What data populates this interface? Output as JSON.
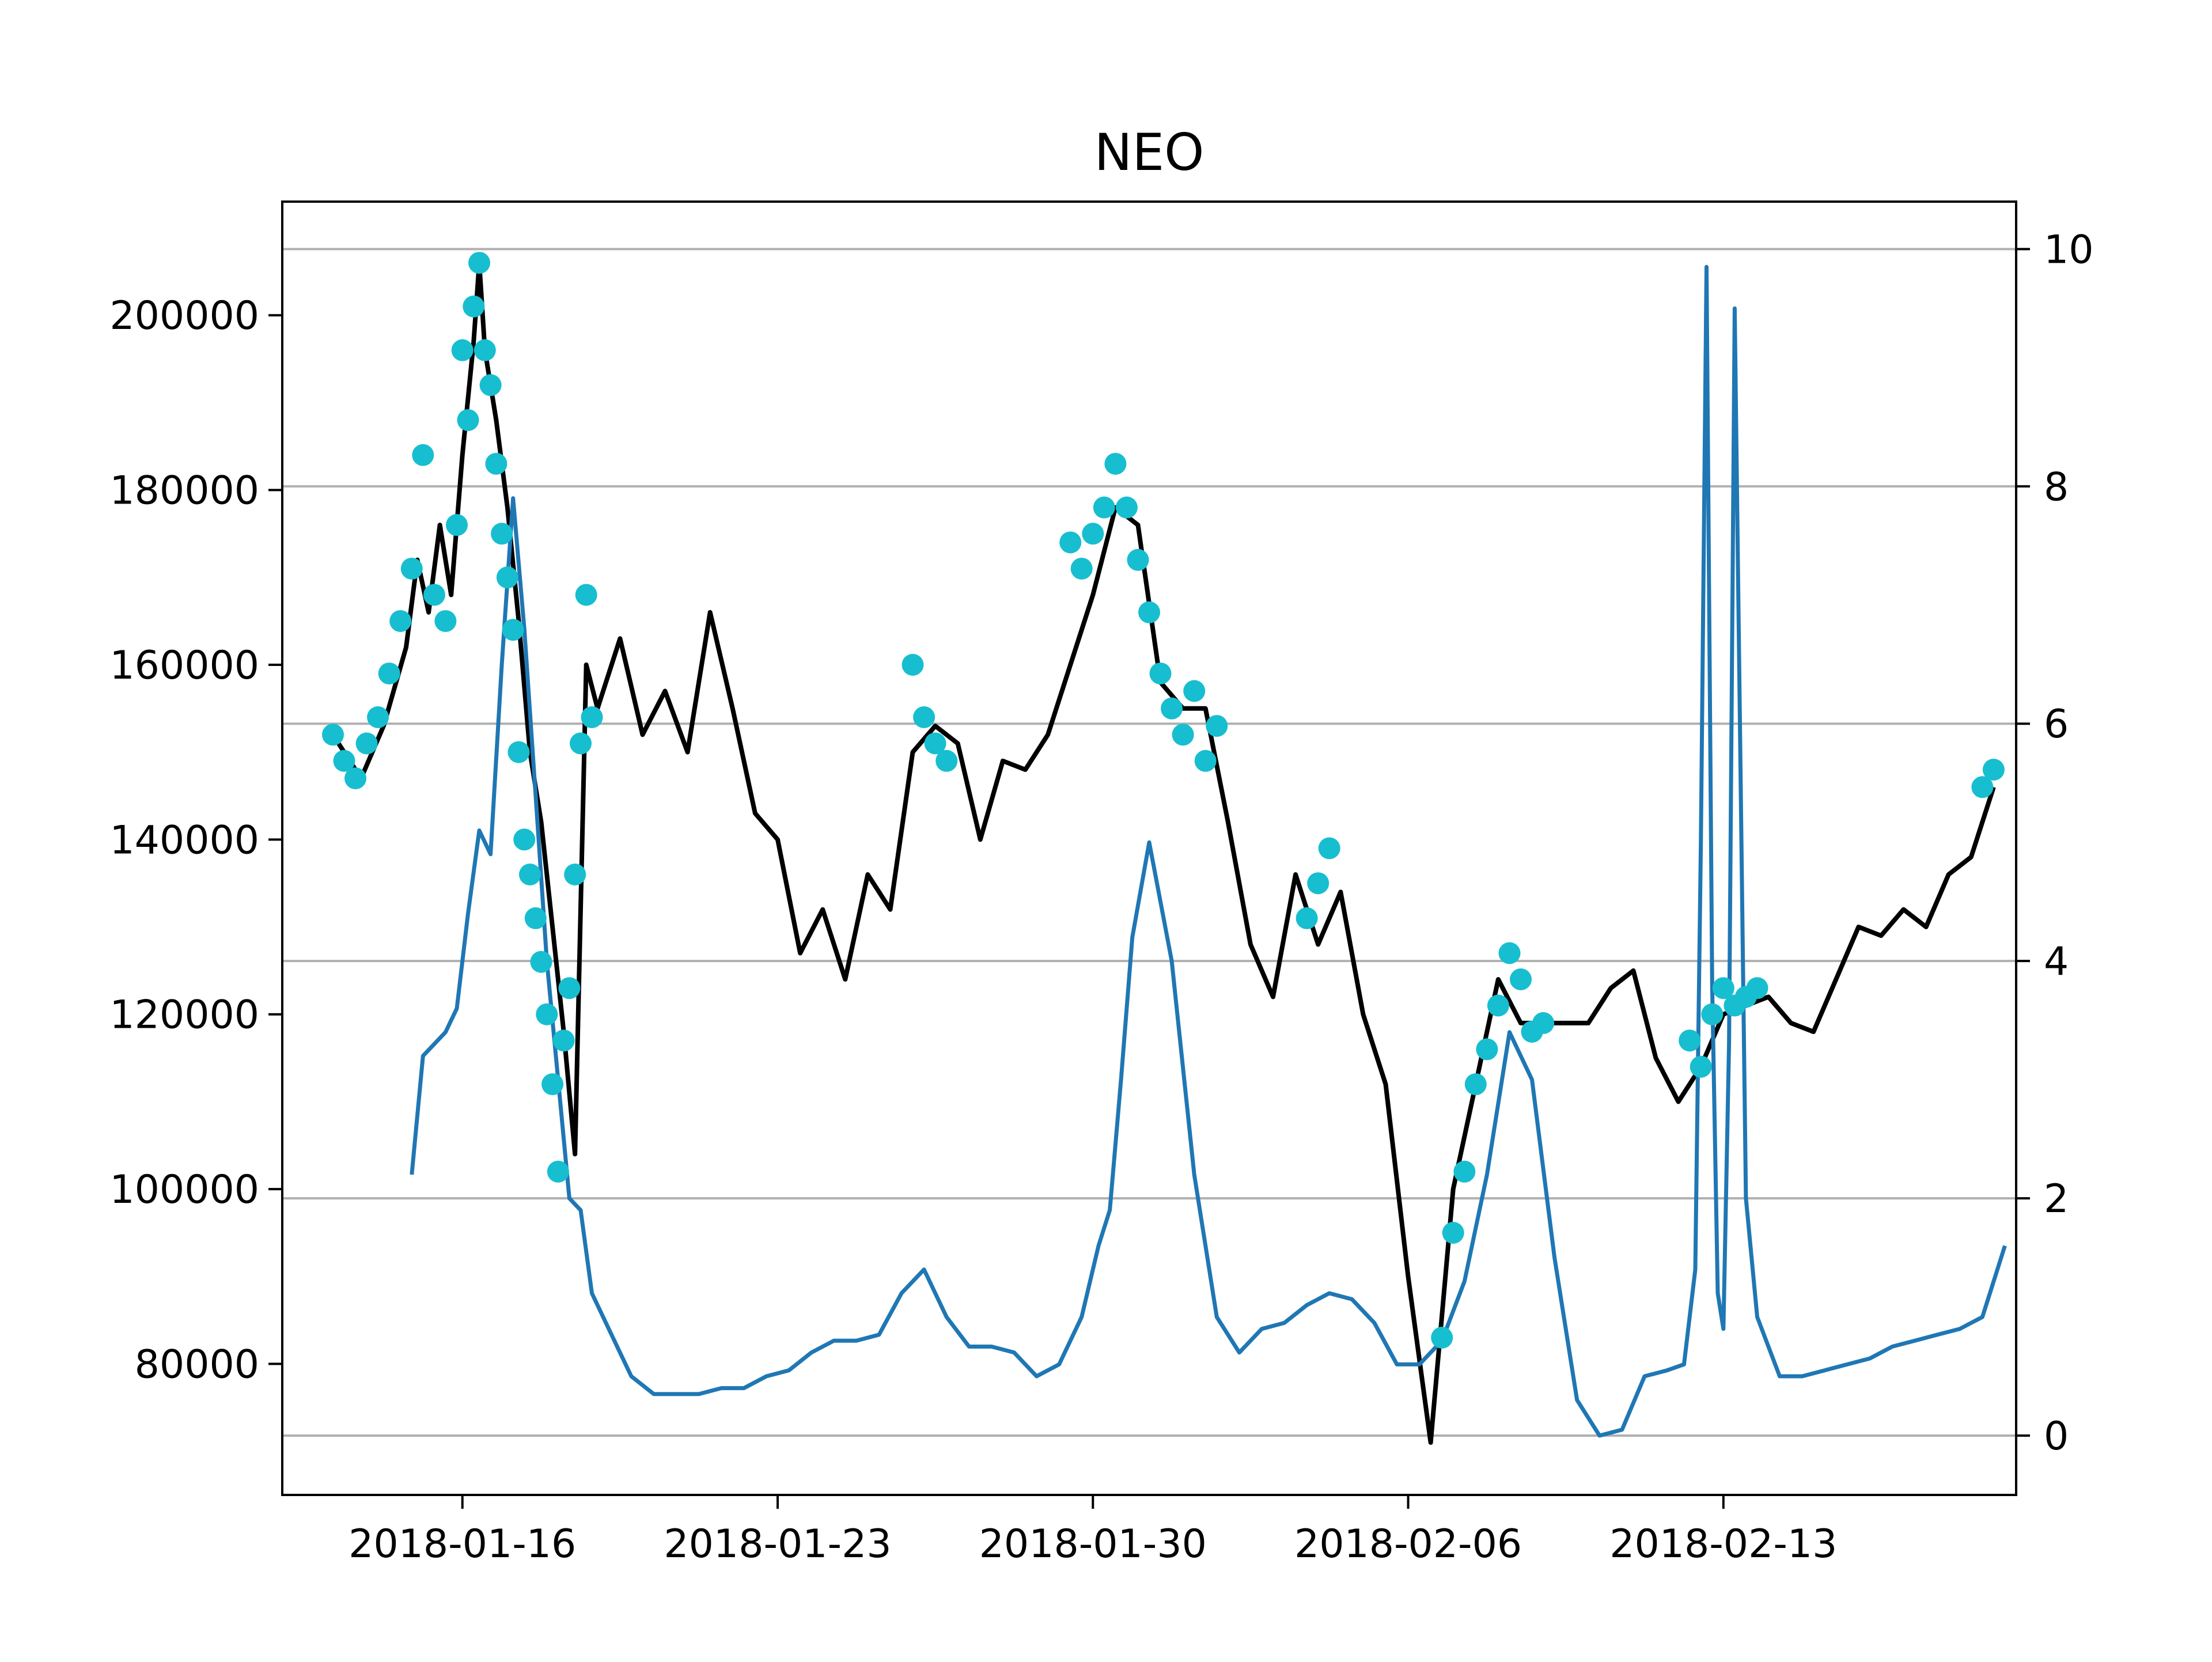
{
  "chart_data": {
    "type": "line",
    "title": "NEO",
    "xlabel": "",
    "ylabel": "",
    "y2label": "",
    "x_ticks": [
      "2018-01-16",
      "2018-01-23",
      "2018-01-30",
      "2018-02-06",
      "2018-02-13"
    ],
    "xlim": [
      "2018-01-12",
      "2018-02-19T12:00"
    ],
    "ylim": [
      65000,
      213000
    ],
    "y2lim": [
      -0.5,
      10.4
    ],
    "y_ticks": [
      80000,
      100000,
      120000,
      140000,
      160000,
      180000,
      200000
    ],
    "y2_ticks": [
      0,
      2,
      4,
      6,
      8,
      10
    ],
    "grid": "horizontal, right axis",
    "colors": {
      "price": "#000000",
      "markers": "#17becf",
      "ratio": "#1f77b4",
      "grid": "#b0b0b0"
    },
    "series": [
      {
        "axis": "left",
        "style": "line",
        "x": [
          "2018-01-13T06:00",
          "2018-01-13T18:00",
          "2018-01-14T06:00",
          "2018-01-14T18:00",
          "2018-01-15T00:00",
          "2018-01-15T06:00",
          "2018-01-15T12:00",
          "2018-01-15T18:00",
          "2018-01-16T00:00",
          "2018-01-16T06:00",
          "2018-01-16T09:00",
          "2018-01-16T12:00",
          "2018-01-16T18:00",
          "2018-01-17T00:00",
          "2018-01-17T06:00",
          "2018-01-17T12:00",
          "2018-01-17T18:00",
          "2018-01-18T00:00",
          "2018-01-18T06:00",
          "2018-01-18T12:00",
          "2018-01-18T18:00",
          "2018-01-19T00:00",
          "2018-01-19T12:00",
          "2018-01-20T00:00",
          "2018-01-20T12:00",
          "2018-01-21T00:00",
          "2018-01-21T12:00",
          "2018-01-22T00:00",
          "2018-01-22T12:00",
          "2018-01-23T00:00",
          "2018-01-23T12:00",
          "2018-01-24T00:00",
          "2018-01-24T12:00",
          "2018-01-25T00:00",
          "2018-01-25T12:00",
          "2018-01-26T00:00",
          "2018-01-26T12:00",
          "2018-01-27T00:00",
          "2018-01-27T12:00",
          "2018-01-28T00:00",
          "2018-01-28T12:00",
          "2018-01-29T00:00",
          "2018-01-29T12:00",
          "2018-01-30T00:00",
          "2018-01-30T12:00",
          "2018-01-31T00:00",
          "2018-01-31T12:00",
          "2018-02-01T00:00",
          "2018-02-01T12:00",
          "2018-02-02T00:00",
          "2018-02-02T12:00",
          "2018-02-03T00:00",
          "2018-02-03T12:00",
          "2018-02-04T00:00",
          "2018-02-04T12:00",
          "2018-02-05T00:00",
          "2018-02-05T12:00",
          "2018-02-06T00:00",
          "2018-02-06T12:00",
          "2018-02-07T00:00",
          "2018-02-07T12:00",
          "2018-02-08T00:00",
          "2018-02-08T12:00",
          "2018-02-09T00:00",
          "2018-02-09T12:00",
          "2018-02-10T00:00",
          "2018-02-10T12:00",
          "2018-02-11T00:00",
          "2018-02-11T12:00",
          "2018-02-12T00:00",
          "2018-02-12T12:00",
          "2018-02-13T00:00",
          "2018-02-13T12:00",
          "2018-02-14T00:00",
          "2018-02-14T12:00",
          "2018-02-15T00:00",
          "2018-02-15T12:00",
          "2018-02-16T00:00",
          "2018-02-16T12:00",
          "2018-02-17T00:00",
          "2018-02-17T12:00",
          "2018-02-18T00:00",
          "2018-02-18T12:00",
          "2018-02-19T00:00"
        ],
        "y": [
          151000,
          147000,
          153000,
          162000,
          172000,
          166000,
          176000,
          168000,
          184000,
          197000,
          206000,
          196000,
          188000,
          178000,
          165000,
          150000,
          142000,
          130000,
          118000,
          104000,
          160000,
          155000,
          163000,
          152000,
          157000,
          150000,
          166000,
          155000,
          143000,
          140000,
          127000,
          132000,
          124000,
          136000,
          132000,
          150000,
          153000,
          151000,
          140000,
          149000,
          148000,
          152000,
          160000,
          168000,
          178000,
          176000,
          158000,
          155000,
          155000,
          142000,
          128000,
          122000,
          136000,
          128000,
          134000,
          120000,
          112000,
          90000,
          71000,
          100000,
          112000,
          124000,
          119000,
          119000,
          119000,
          119000,
          123000,
          125000,
          115000,
          110000,
          114000,
          120000,
          121000,
          122000,
          119000,
          118000,
          124000,
          130000,
          129000,
          132000,
          130000,
          136000,
          138000,
          146000
        ]
      },
      {
        "axis": "left",
        "style": "markers",
        "x": [
          "2018-01-13T03:00",
          "2018-01-13T09:00",
          "2018-01-13T15:00",
          "2018-01-13T21:00",
          "2018-01-14T03:00",
          "2018-01-14T09:00",
          "2018-01-14T15:00",
          "2018-01-14T21:00",
          "2018-01-15T03:00",
          "2018-01-15T09:00",
          "2018-01-15T15:00",
          "2018-01-15T21:00",
          "2018-01-16T00:00",
          "2018-01-16T03:00",
          "2018-01-16T06:00",
          "2018-01-16T09:00",
          "2018-01-16T12:00",
          "2018-01-16T15:00",
          "2018-01-16T18:00",
          "2018-01-16T21:00",
          "2018-01-17T00:00",
          "2018-01-17T03:00",
          "2018-01-17T06:00",
          "2018-01-17T09:00",
          "2018-01-17T12:00",
          "2018-01-17T15:00",
          "2018-01-17T18:00",
          "2018-01-17T21:00",
          "2018-01-18T00:00",
          "2018-01-18T03:00",
          "2018-01-18T06:00",
          "2018-01-18T09:00",
          "2018-01-18T12:00",
          "2018-01-18T15:00",
          "2018-01-18T18:00",
          "2018-01-18T21:00",
          "2018-01-26T00:00",
          "2018-01-26T06:00",
          "2018-01-26T12:00",
          "2018-01-26T18:00",
          "2018-01-29T12:00",
          "2018-01-29T18:00",
          "2018-01-30T00:00",
          "2018-01-30T06:00",
          "2018-01-30T12:00",
          "2018-01-30T18:00",
          "2018-01-31T00:00",
          "2018-01-31T06:00",
          "2018-01-31T12:00",
          "2018-01-31T18:00",
          "2018-02-01T00:00",
          "2018-02-01T06:00",
          "2018-02-01T12:00",
          "2018-02-01T18:00",
          "2018-02-03T18:00",
          "2018-02-04T00:00",
          "2018-02-04T06:00",
          "2018-02-06T18:00",
          "2018-02-07T00:00",
          "2018-02-07T06:00",
          "2018-02-07T12:00",
          "2018-02-07T18:00",
          "2018-02-08T00:00",
          "2018-02-08T06:00",
          "2018-02-08T12:00",
          "2018-02-08T18:00",
          "2018-02-09T00:00",
          "2018-02-12T06:00",
          "2018-02-12T12:00",
          "2018-02-12T18:00",
          "2018-02-13T00:00",
          "2018-02-13T06:00",
          "2018-02-13T12:00",
          "2018-02-13T18:00",
          "2018-02-18T18:00",
          "2018-02-19T00:00"
        ],
        "y": [
          152000,
          149000,
          147000,
          151000,
          154000,
          159000,
          165000,
          171000,
          184000,
          168000,
          165000,
          176000,
          196000,
          188000,
          201000,
          206000,
          196000,
          192000,
          183000,
          175000,
          170000,
          164000,
          150000,
          140000,
          136000,
          131000,
          126000,
          120000,
          112000,
          102000,
          117000,
          123000,
          136000,
          151000,
          168000,
          154000,
          160000,
          154000,
          151000,
          149000,
          174000,
          171000,
          175000,
          178000,
          183000,
          178000,
          172000,
          166000,
          159000,
          155000,
          152000,
          157000,
          149000,
          153000,
          131000,
          135000,
          139000,
          83000,
          95000,
          102000,
          112000,
          116000,
          121000,
          127000,
          124000,
          118000,
          119000,
          117000,
          114000,
          120000,
          123000,
          121000,
          122000,
          123000,
          146000,
          148000
        ]
      },
      {
        "axis": "right",
        "style": "line",
        "x": [
          "2018-01-14T21:00",
          "2018-01-15T03:00",
          "2018-01-15T09:00",
          "2018-01-15T15:00",
          "2018-01-15T21:00",
          "2018-01-16T03:00",
          "2018-01-16T09:00",
          "2018-01-16T15:00",
          "2018-01-16T21:00",
          "2018-01-17T03:00",
          "2018-01-17T09:00",
          "2018-01-17T15:00",
          "2018-01-17T21:00",
          "2018-01-18T03:00",
          "2018-01-18T09:00",
          "2018-01-18T15:00",
          "2018-01-18T21:00",
          "2018-01-19T06:00",
          "2018-01-19T18:00",
          "2018-01-20T06:00",
          "2018-01-20T18:00",
          "2018-01-21T06:00",
          "2018-01-21T18:00",
          "2018-01-22T06:00",
          "2018-01-22T18:00",
          "2018-01-23T06:00",
          "2018-01-23T18:00",
          "2018-01-24T06:00",
          "2018-01-24T18:00",
          "2018-01-25T06:00",
          "2018-01-25T18:00",
          "2018-01-26T06:00",
          "2018-01-26T18:00",
          "2018-01-27T06:00",
          "2018-01-27T18:00",
          "2018-01-28T06:00",
          "2018-01-28T18:00",
          "2018-01-29T06:00",
          "2018-01-29T18:00",
          "2018-01-30T03:00",
          "2018-01-30T09:00",
          "2018-01-30T15:00",
          "2018-01-30T21:00",
          "2018-01-31T06:00",
          "2018-01-31T18:00",
          "2018-02-01T06:00",
          "2018-02-01T18:00",
          "2018-02-02T06:00",
          "2018-02-02T18:00",
          "2018-02-03T06:00",
          "2018-02-03T18:00",
          "2018-02-04T06:00",
          "2018-02-04T18:00",
          "2018-02-05T06:00",
          "2018-02-05T18:00",
          "2018-02-06T06:00",
          "2018-02-06T18:00",
          "2018-02-07T06:00",
          "2018-02-07T18:00",
          "2018-02-08T06:00",
          "2018-02-08T18:00",
          "2018-02-09T06:00",
          "2018-02-09T18:00",
          "2018-02-10T06:00",
          "2018-02-10T18:00",
          "2018-02-11T06:00",
          "2018-02-11T18:00",
          "2018-02-12T03:00",
          "2018-02-12T09:00",
          "2018-02-12T12:00",
          "2018-02-12T15:00",
          "2018-02-12T18:00",
          "2018-02-12T21:00",
          "2018-02-13T00:00",
          "2018-02-13T03:00",
          "2018-02-13T06:00",
          "2018-02-13T12:00",
          "2018-02-13T18:00",
          "2018-02-14T06:00",
          "2018-02-14T18:00",
          "2018-02-15T06:00",
          "2018-02-15T18:00",
          "2018-02-16T06:00",
          "2018-02-16T18:00",
          "2018-02-17T06:00",
          "2018-02-17T18:00",
          "2018-02-18T06:00",
          "2018-02-18T18:00",
          "2018-02-19T06:00"
        ],
        "y": [
          2.2,
          3.2,
          3.3,
          3.4,
          3.6,
          4.4,
          5.1,
          4.9,
          6.5,
          7.9,
          6.8,
          5.4,
          4.0,
          3.0,
          2.0,
          1.9,
          1.2,
          0.9,
          0.5,
          0.35,
          0.35,
          0.35,
          0.4,
          0.4,
          0.5,
          0.55,
          0.7,
          0.8,
          0.8,
          0.85,
          1.2,
          1.4,
          1.0,
          0.75,
          0.75,
          0.7,
          0.5,
          0.6,
          1.0,
          1.6,
          1.9,
          3.0,
          4.2,
          5.0,
          4.0,
          2.2,
          1.0,
          0.7,
          0.9,
          0.95,
          1.1,
          1.2,
          1.15,
          0.95,
          0.6,
          0.6,
          0.8,
          1.3,
          2.2,
          3.4,
          3.0,
          1.5,
          0.3,
          0.0,
          0.05,
          0.5,
          0.55,
          0.6,
          1.4,
          5.0,
          9.85,
          3.8,
          1.2,
          0.9,
          3.3,
          9.5,
          2.0,
          1.0,
          0.5,
          0.5,
          0.55,
          0.6,
          0.65,
          0.75,
          0.8,
          0.85,
          0.9,
          1.0,
          1.6
        ]
      }
    ]
  }
}
